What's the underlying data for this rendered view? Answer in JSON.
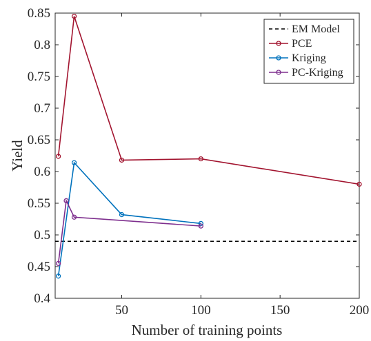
{
  "chart_data": {
    "type": "line",
    "xlabel": "Number of training points",
    "ylabel": "Yield",
    "xlim": [
      8,
      200
    ],
    "ylim": [
      0.4,
      0.85
    ],
    "xticks": [
      50,
      100,
      150,
      200
    ],
    "yticks": [
      0.4,
      0.45,
      0.5,
      0.55,
      0.6,
      0.65,
      0.7,
      0.75,
      0.8,
      0.85
    ],
    "grid": false,
    "legend_position": "top-right",
    "series": [
      {
        "name": "EM Model",
        "style": "dashed",
        "marker": "none",
        "color": "#000000",
        "x": [
          8,
          200
        ],
        "y": [
          0.49,
          0.49
        ]
      },
      {
        "name": "PCE",
        "style": "solid",
        "marker": "circle",
        "color": "#a2142f",
        "x": [
          10,
          20,
          50,
          100,
          200
        ],
        "y": [
          0.624,
          0.845,
          0.618,
          0.62,
          0.58
        ]
      },
      {
        "name": "Kriging",
        "style": "solid",
        "marker": "circle",
        "color": "#0072bd",
        "x": [
          10,
          20,
          50,
          100
        ],
        "y": [
          0.435,
          0.614,
          0.532,
          0.518
        ]
      },
      {
        "name": "PC-Kriging",
        "style": "solid",
        "marker": "circle",
        "color": "#7e2f8e",
        "x": [
          10,
          15,
          20,
          100
        ],
        "y": [
          0.455,
          0.554,
          0.528,
          0.514
        ]
      }
    ]
  }
}
